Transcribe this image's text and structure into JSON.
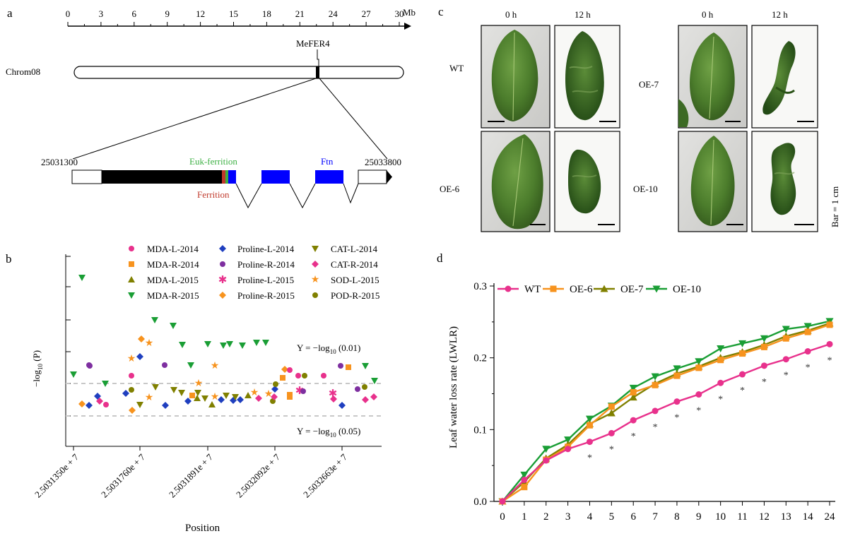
{
  "panel_a": {
    "label": "a",
    "axis_ticks": [
      "0",
      "3",
      "6",
      "9",
      "12",
      "15",
      "18",
      "21",
      "24",
      "27",
      "30"
    ],
    "axis_unit": "Mb",
    "chrom_label": "Chrom08",
    "gene_label": "MeFER4",
    "start_coord": "25031300",
    "end_coord": "25033800",
    "euk_label": "Euk-ferrition",
    "ftn_label": "Ftn",
    "ferrition_label": "Ferrition",
    "colors": {
      "euk": "#3cb043",
      "ftn": "#0000ff",
      "ferrition": "#c0392b"
    }
  },
  "panel_b": {
    "label": "b",
    "legend": [
      {
        "name": "MDA-L-2014",
        "color": "#e8318c",
        "marker": "circle"
      },
      {
        "name": "MDA-R-2014",
        "color": "#f7931e",
        "marker": "square"
      },
      {
        "name": "MDA-L-2015",
        "color": "#808000",
        "marker": "triangle-up"
      },
      {
        "name": "MDA-R-2015",
        "color": "#1a9e35",
        "marker": "triangle-down"
      },
      {
        "name": "Proline-L-2014",
        "color": "#1f3fbf",
        "marker": "diamond"
      },
      {
        "name": "Proline-R-2014",
        "color": "#7e2fa0",
        "marker": "circle"
      },
      {
        "name": "Proline-L-2015",
        "color": "#e8318c",
        "marker": "asterisk"
      },
      {
        "name": "Proline-R-2015",
        "color": "#f7931e",
        "marker": "diamond"
      },
      {
        "name": "CAT-L-2014",
        "color": "#808000",
        "marker": "triangle-down"
      },
      {
        "name": "CAT-R-2014",
        "color": "#e8318c",
        "marker": "diamond"
      },
      {
        "name": "SOD-L-2015",
        "color": "#f7931e",
        "marker": "star"
      },
      {
        "name": "POD-R-2015",
        "color": "#808000",
        "marker": "circle"
      }
    ],
    "ylabel": "−log10 (P)",
    "ylabel_main": "−log",
    "ylabel_sub": "10",
    "ylabel_tail": " (P)",
    "threshold_001": "Y = −log10 (0.01)",
    "threshold_001_main": "Y = −log",
    "threshold_001_sub": "10",
    "threshold_001_tail": " (0.01)",
    "threshold_005": "Y = −log10 (0.05)",
    "threshold_005_main": "Y = −log",
    "threshold_005_sub": "10",
    "threshold_005_tail": " (0.05)",
    "xlabel": "Position",
    "xticks": [
      "2.5031350e + 7",
      "2.5031760e + 7",
      "2.5031891e + 7",
      "2.5032092e + 7",
      "2.5032663e + 7"
    ]
  },
  "panel_c": {
    "label": "c",
    "col_labels": [
      "0 h",
      "12 h",
      "0 h",
      "12 h"
    ],
    "row_labels": [
      "WT",
      "OE-6",
      "OE-7",
      "OE-10"
    ],
    "scale_label": "Bar = 1 cm"
  },
  "panel_d": {
    "label": "d",
    "legend": [
      "WT",
      "OE-6",
      "OE-7",
      "OE-10"
    ],
    "ylabel": "Leaf water loss rate (LWLR)",
    "colors": [
      "#e8318c",
      "#f7931e",
      "#808000",
      "#1a9e35"
    ],
    "chart_data": {
      "type": "line",
      "title": "",
      "xlabel": "",
      "ylabel": "Leaf water loss rate (LWLR)",
      "categories": [
        "0",
        "1",
        "2",
        "3",
        "4",
        "5",
        "6",
        "7",
        "8",
        "9",
        "10",
        "11",
        "12",
        "13",
        "14",
        "24"
      ],
      "ylim": [
        0,
        0.3
      ],
      "yticks": [
        "0.0",
        "0.1",
        "0.2",
        "0.3"
      ],
      "series": [
        {
          "name": "WT",
          "marker": "circle",
          "values": [
            0,
            0.03,
            0.057,
            0.073,
            0.083,
            0.095,
            0.113,
            0.126,
            0.139,
            0.149,
            0.165,
            0.177,
            0.189,
            0.198,
            0.209,
            0.219
          ]
        },
        {
          "name": "OE-6",
          "marker": "square",
          "values": [
            0,
            0.02,
            0.058,
            0.076,
            0.106,
            0.132,
            0.152,
            0.162,
            0.175,
            0.186,
            0.197,
            0.206,
            0.215,
            0.227,
            0.236,
            0.246
          ]
        },
        {
          "name": "OE-7",
          "marker": "triangle-up",
          "values": [
            0,
            0.027,
            0.06,
            0.079,
            0.108,
            0.123,
            0.145,
            0.164,
            0.178,
            0.188,
            0.2,
            0.208,
            0.218,
            0.23,
            0.238,
            0.248
          ]
        },
        {
          "name": "OE-10",
          "marker": "triangle-down",
          "values": [
            0,
            0.037,
            0.073,
            0.086,
            0.115,
            0.133,
            0.158,
            0.174,
            0.185,
            0.195,
            0.213,
            0.22,
            0.227,
            0.24,
            0.244,
            0.251
          ]
        }
      ],
      "significance_mark": "*",
      "significant_categories": [
        "4",
        "5",
        "6",
        "7",
        "8",
        "9",
        "10",
        "11",
        "12",
        "13",
        "14",
        "24"
      ]
    }
  }
}
